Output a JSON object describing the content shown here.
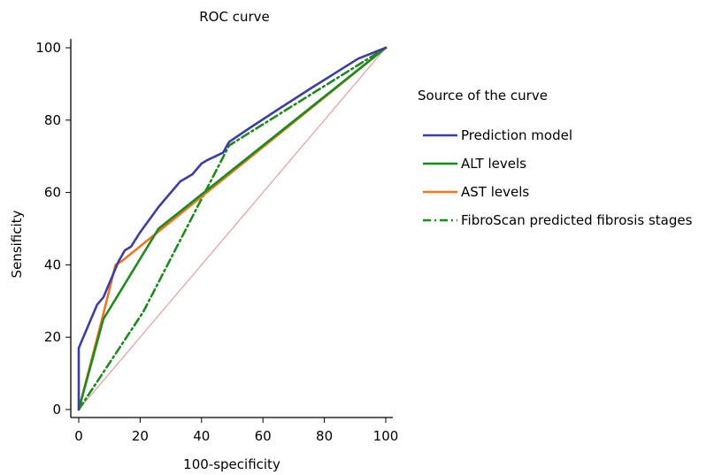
{
  "chart_data": {
    "type": "line",
    "title": "ROC curve",
    "xlabel": "100-specificity",
    "ylabel": "Sensificity",
    "xlim": [
      0,
      100
    ],
    "ylim": [
      0,
      100
    ],
    "x_ticks": [
      0,
      20,
      40,
      60,
      80,
      100
    ],
    "y_ticks": [
      0,
      20,
      40,
      60,
      80,
      100
    ],
    "legend": {
      "title": "Source of the curve",
      "placement": "right"
    },
    "reference_line": {
      "points": [
        [
          0,
          0
        ],
        [
          100,
          100
        ]
      ],
      "color": "#e0a0a0"
    },
    "series": [
      {
        "name": "Prediction model",
        "color": "#3c3fa0",
        "dash": "solid",
        "points": [
          [
            0,
            0
          ],
          [
            0,
            17
          ],
          [
            2,
            21
          ],
          [
            6,
            29
          ],
          [
            8,
            31
          ],
          [
            13,
            41
          ],
          [
            15,
            44
          ],
          [
            17,
            45
          ],
          [
            20,
            49
          ],
          [
            26,
            56
          ],
          [
            33,
            63
          ],
          [
            37,
            65
          ],
          [
            39,
            67
          ],
          [
            40,
            68
          ],
          [
            42,
            69
          ],
          [
            47,
            71
          ],
          [
            49,
            74
          ],
          [
            56,
            78
          ],
          [
            65,
            83
          ],
          [
            76,
            89
          ],
          [
            91,
            97
          ],
          [
            100,
            100
          ]
        ]
      },
      {
        "name": "ALT levels",
        "color": "#1e8a1e",
        "dash": "solid",
        "points": [
          [
            0,
            0
          ],
          [
            8,
            25
          ],
          [
            26,
            50
          ],
          [
            100,
            100
          ]
        ]
      },
      {
        "name": "AST levels",
        "color": "#f37320",
        "dash": "solid",
        "points": [
          [
            0,
            0
          ],
          [
            7,
            23
          ],
          [
            12,
            40
          ],
          [
            14,
            41
          ],
          [
            100,
            100
          ]
        ]
      },
      {
        "name": "FibroScan predicted fibrosis stages",
        "color": "#1e8a1e",
        "dash": "dashdot",
        "points": [
          [
            0,
            0
          ],
          [
            21,
            27
          ],
          [
            49,
            73
          ],
          [
            100,
            100
          ]
        ]
      }
    ]
  }
}
